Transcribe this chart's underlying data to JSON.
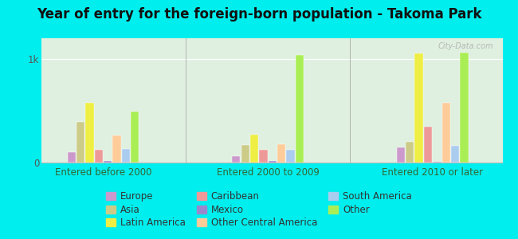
{
  "title": "Year of entry for the foreign-born population - Takoma Park",
  "groups": [
    "Entered before 2000",
    "Entered 2000 to 2009",
    "Entered 2010 or later"
  ],
  "series": [
    {
      "label": "Europe",
      "color": "#cc99cc",
      "values": [
        100,
        60,
        150
      ]
    },
    {
      "label": "Asia",
      "color": "#cccc88",
      "values": [
        390,
        170,
        200
      ]
    },
    {
      "label": "Latin America",
      "color": "#eeee44",
      "values": [
        580,
        270,
        1050
      ]
    },
    {
      "label": "Caribbean",
      "color": "#ee9999",
      "values": [
        120,
        120,
        350
      ]
    },
    {
      "label": "Mexico",
      "color": "#9988cc",
      "values": [
        15,
        15,
        10
      ]
    },
    {
      "label": "Other Central America",
      "color": "#ffcc99",
      "values": [
        260,
        175,
        580
      ]
    },
    {
      "label": "South America",
      "color": "#aaccee",
      "values": [
        130,
        120,
        160
      ]
    },
    {
      "label": "Other",
      "color": "#aaee55",
      "values": [
        490,
        1040,
        1060
      ]
    }
  ],
  "legend_order": [
    0,
    3,
    6,
    1,
    4,
    7,
    2,
    5
  ],
  "legend_ncol": 3,
  "legend_labels_col1": [
    "Europe",
    "Caribbean",
    "South America"
  ],
  "legend_labels_col2": [
    "Asia",
    "Mexico",
    "Other"
  ],
  "legend_labels_col3": [
    "Latin America",
    "Other Central America"
  ],
  "ylim": [
    0,
    1200
  ],
  "yticks": [
    0,
    1000
  ],
  "ytick_labels": [
    "0",
    "1k"
  ],
  "background_color": "#00eeee",
  "plot_facecolor": "#e0f0e0",
  "title_fontsize": 12,
  "legend_fontsize": 8.5,
  "watermark": "City-Data.com"
}
